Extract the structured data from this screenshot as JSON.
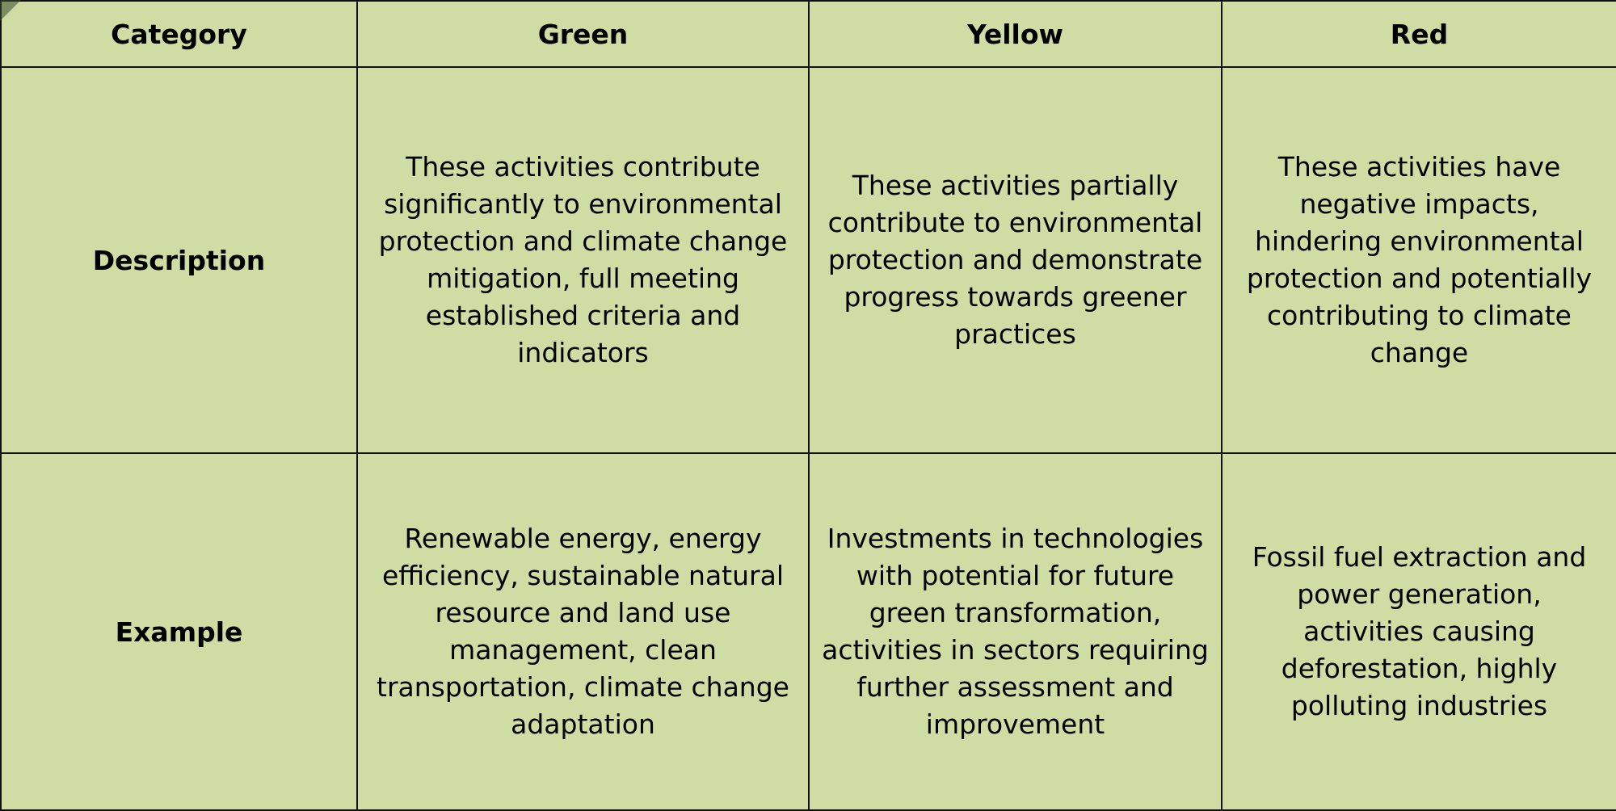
{
  "table": {
    "headers": [
      "Category",
      "Green",
      "Yellow",
      "Red"
    ],
    "rows": [
      {
        "label": "Description",
        "green": "These activities contribute significantly to environmental protection and climate change mitigation, full meeting established criteria and indicators",
        "yellow": "These activities partially contribute to environmental protection and demonstrate progress towards greener practices",
        "red": "These activities have negative impacts, hindering environmental protection and potentially contributing to climate change"
      },
      {
        "label": "Example",
        "green": "Renewable energy, energy efficiency, sustainable natural resource and land use management, clean transportation, climate change adaptation",
        "yellow": "Investments in technologies with potential for future green transformation, activities in sectors requiring further assessment and improvement",
        "red": "Fossil fuel extraction and power generation, activities causing deforestation, highly polluting industries"
      }
    ]
  },
  "colors": {
    "background": "#cfdca3",
    "border": "#111111"
  }
}
